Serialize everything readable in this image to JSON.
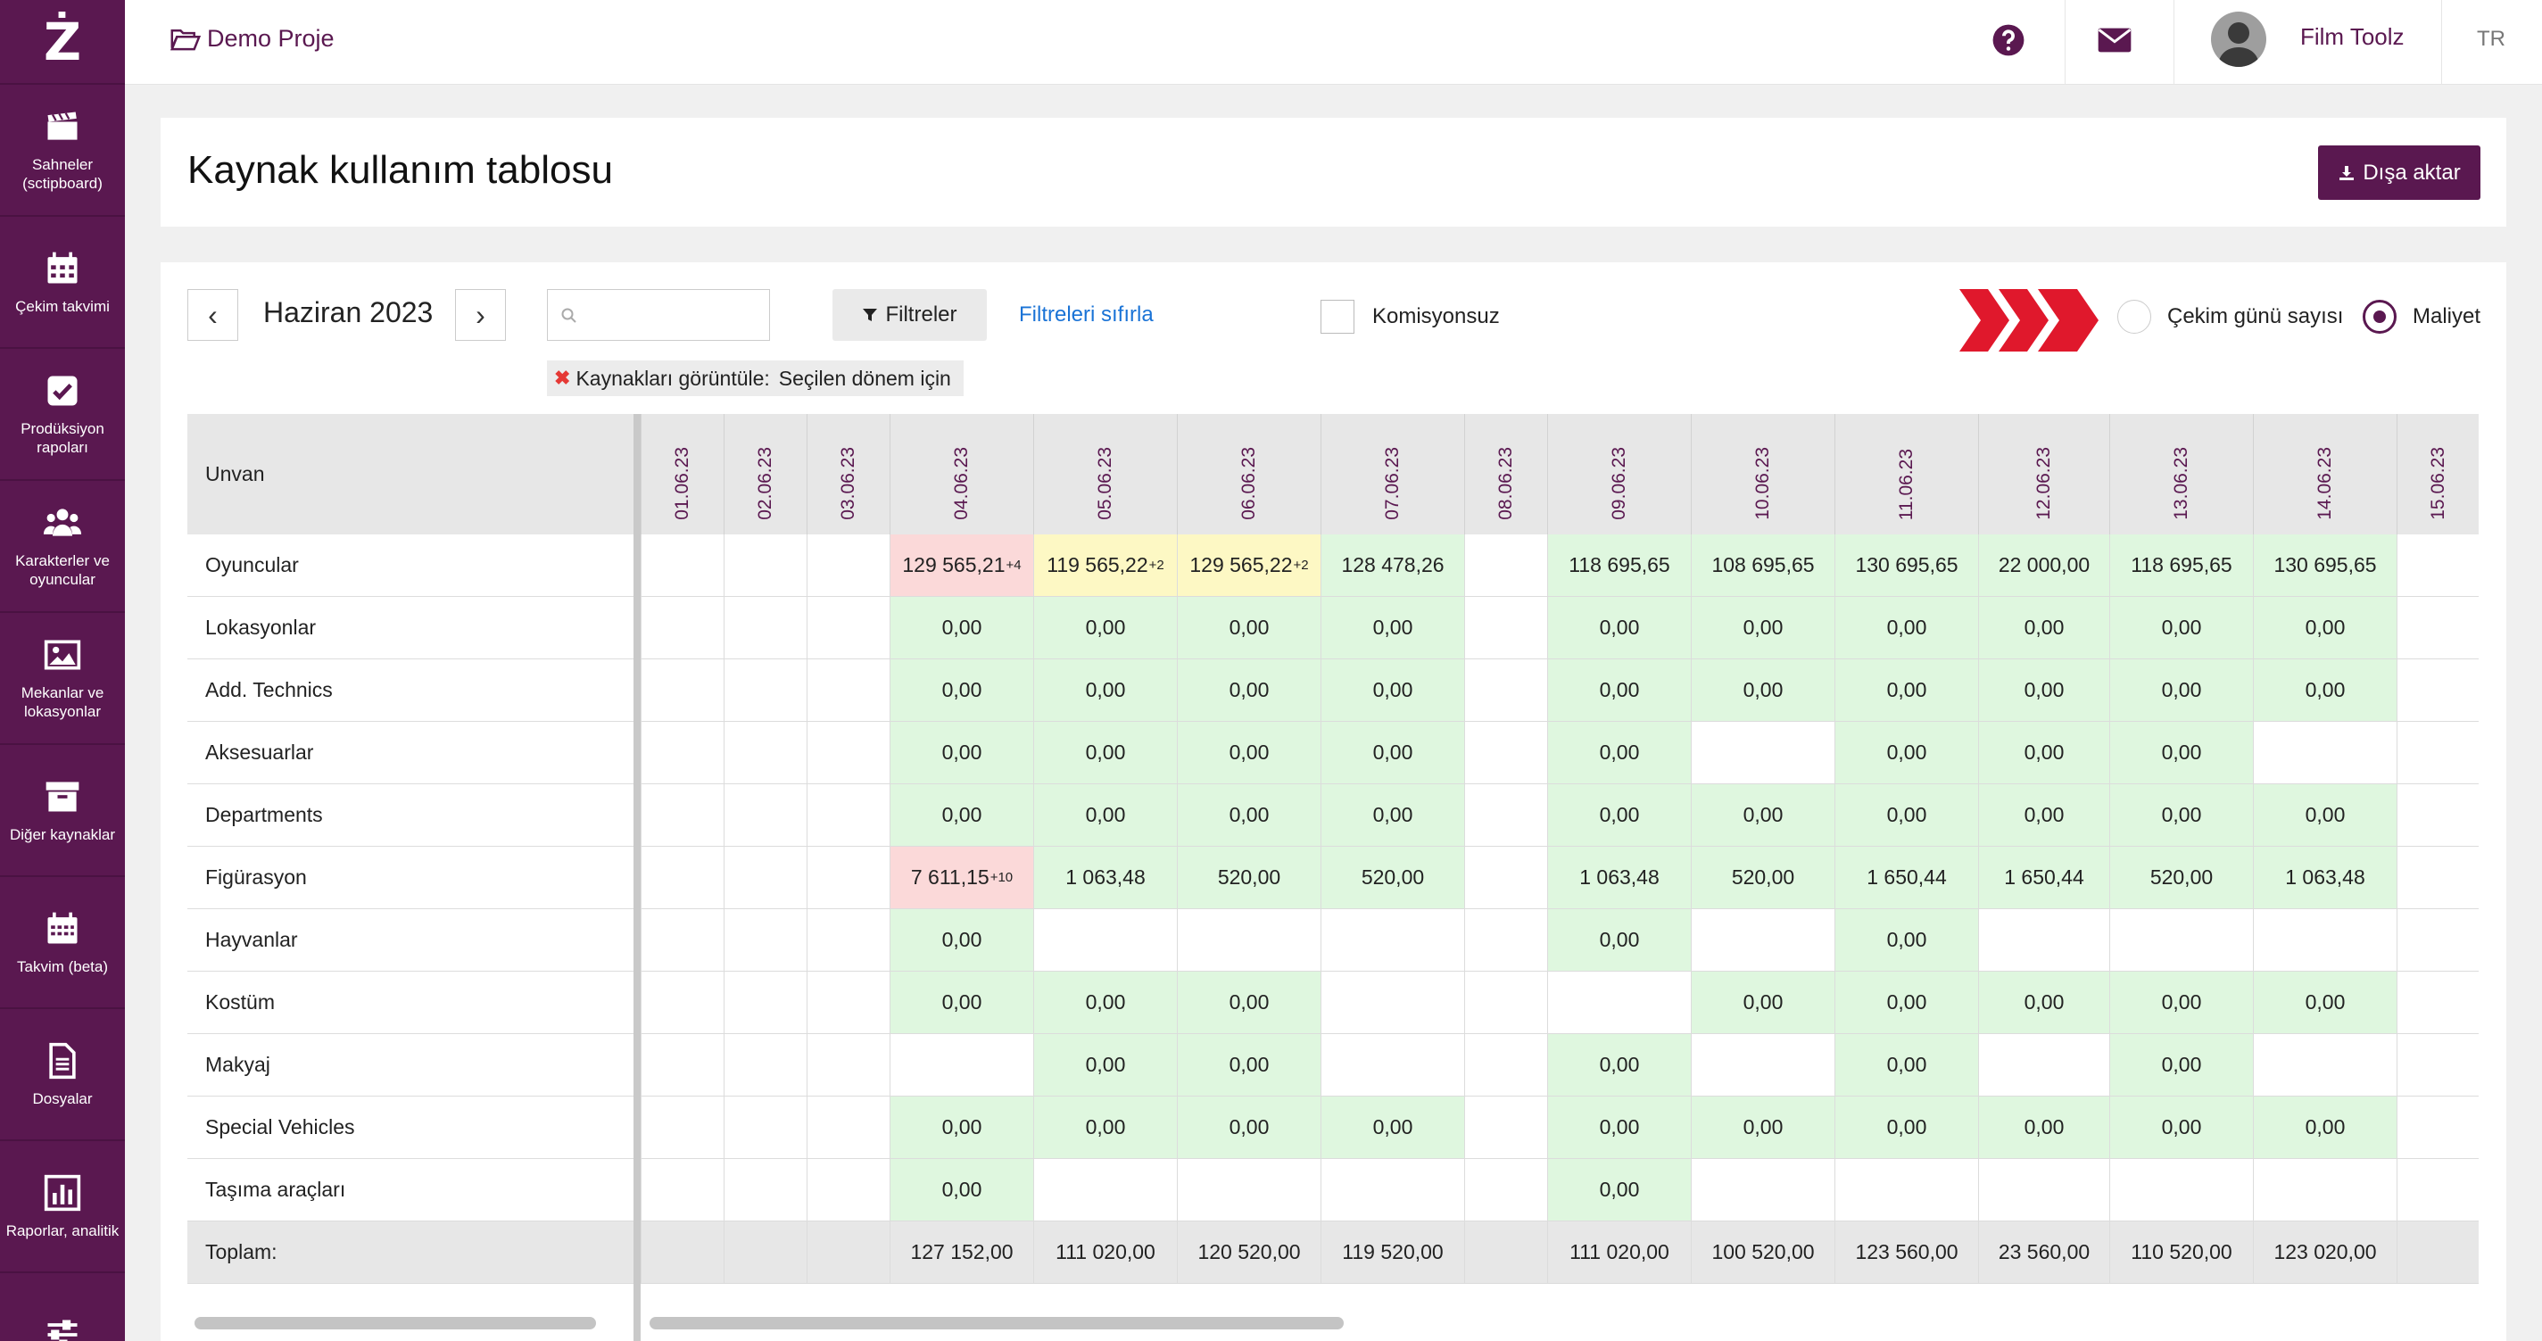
{
  "sidebar": {
    "logo": "Ż",
    "items": [
      {
        "label": "Sahneler (sctipboard)",
        "icon": "clapperboard-icon"
      },
      {
        "label": "Çekim takvimi",
        "icon": "calendar-icon"
      },
      {
        "label": "Prodüksiyon rapoları",
        "icon": "checkbox-icon"
      },
      {
        "label": "Karakterler ve oyuncular",
        "icon": "users-icon"
      },
      {
        "label": "Mekanlar ve lokasyonlar",
        "icon": "image-icon"
      },
      {
        "label": "Diğer kaynaklar",
        "icon": "archive-icon"
      },
      {
        "label": "Takvim (beta)",
        "icon": "calendar-grid-icon"
      },
      {
        "label": "Dosyalar",
        "icon": "file-icon"
      },
      {
        "label": "Raporlar, analitik",
        "icon": "bar-chart-icon"
      },
      {
        "label": "",
        "icon": "sliders-icon"
      }
    ]
  },
  "topbar": {
    "project": "Demo Proje",
    "user_name": "Film Toolz",
    "lang": "TR"
  },
  "header": {
    "title": "Kaynak kullanım tablosu",
    "export_label": "Dışa aktar"
  },
  "controls": {
    "prev": "‹",
    "next": "›",
    "month": "Haziran 2023",
    "search_value": "",
    "filter_label": "Filtreler",
    "reset_label": "Filtreleri sıfırla",
    "commission_label": "Komisyonsuz",
    "radio_days": "Çekim günü sayısı",
    "radio_cost": "Maliyet",
    "chip_label": "Kaynakları görüntüle:",
    "chip_value": "Seçilen dönem için"
  },
  "colors": {
    "brand": "#5a1850",
    "cell_green": "#dff7df",
    "cell_yellow": "#fdf8c4",
    "cell_red": "#fbd9d9",
    "arrow_red": "#e0182c"
  },
  "table": {
    "row_header": "Unvan",
    "dates": [
      "01.06.23",
      "02.06.23",
      "03.06.23",
      "04.06.23",
      "05.06.23",
      "06.06.23",
      "07.06.23",
      "08.06.23",
      "09.06.23",
      "10.06.23",
      "11.06.23",
      "12.06.23",
      "13.06.23",
      "14.06.23",
      "15.06.23"
    ],
    "rows": [
      {
        "name": "Oyuncular",
        "cells": [
          {
            "v": ""
          },
          {
            "v": ""
          },
          {
            "v": ""
          },
          {
            "v": "129 565,21",
            "sup": "+4",
            "c": "red"
          },
          {
            "v": "119 565,22",
            "sup": "+2",
            "c": "yellow"
          },
          {
            "v": "129 565,22",
            "sup": "+2",
            "c": "yellow"
          },
          {
            "v": "128 478,26",
            "c": "green"
          },
          {
            "v": ""
          },
          {
            "v": "118 695,65",
            "c": "green"
          },
          {
            "v": "108 695,65",
            "c": "green"
          },
          {
            "v": "130 695,65",
            "c": "green"
          },
          {
            "v": "22 000,00",
            "c": "green"
          },
          {
            "v": "118 695,65",
            "c": "green"
          },
          {
            "v": "130 695,65",
            "c": "green"
          },
          {
            "v": ""
          }
        ]
      },
      {
        "name": "Lokasyonlar",
        "cells": [
          {
            "v": ""
          },
          {
            "v": ""
          },
          {
            "v": ""
          },
          {
            "v": "0,00",
            "c": "green"
          },
          {
            "v": "0,00",
            "c": "green"
          },
          {
            "v": "0,00",
            "c": "green"
          },
          {
            "v": "0,00",
            "c": "green"
          },
          {
            "v": ""
          },
          {
            "v": "0,00",
            "c": "green"
          },
          {
            "v": "0,00",
            "c": "green"
          },
          {
            "v": "0,00",
            "c": "green"
          },
          {
            "v": "0,00",
            "c": "green"
          },
          {
            "v": "0,00",
            "c": "green"
          },
          {
            "v": "0,00",
            "c": "green"
          },
          {
            "v": ""
          }
        ]
      },
      {
        "name": "Add. Technics",
        "cells": [
          {
            "v": ""
          },
          {
            "v": ""
          },
          {
            "v": ""
          },
          {
            "v": "0,00",
            "c": "green"
          },
          {
            "v": "0,00",
            "c": "green"
          },
          {
            "v": "0,00",
            "c": "green"
          },
          {
            "v": "0,00",
            "c": "green"
          },
          {
            "v": ""
          },
          {
            "v": "0,00",
            "c": "green"
          },
          {
            "v": "0,00",
            "c": "green"
          },
          {
            "v": "0,00",
            "c": "green"
          },
          {
            "v": "0,00",
            "c": "green"
          },
          {
            "v": "0,00",
            "c": "green"
          },
          {
            "v": "0,00",
            "c": "green"
          },
          {
            "v": ""
          }
        ]
      },
      {
        "name": "Aksesuarlar",
        "cells": [
          {
            "v": ""
          },
          {
            "v": ""
          },
          {
            "v": ""
          },
          {
            "v": "0,00",
            "c": "green"
          },
          {
            "v": "0,00",
            "c": "green"
          },
          {
            "v": "0,00",
            "c": "green"
          },
          {
            "v": "0,00",
            "c": "green"
          },
          {
            "v": ""
          },
          {
            "v": "0,00",
            "c": "green"
          },
          {
            "v": ""
          },
          {
            "v": "0,00",
            "c": "green"
          },
          {
            "v": "0,00",
            "c": "green"
          },
          {
            "v": "0,00",
            "c": "green"
          },
          {
            "v": ""
          },
          {
            "v": ""
          }
        ]
      },
      {
        "name": "Departments",
        "cells": [
          {
            "v": ""
          },
          {
            "v": ""
          },
          {
            "v": ""
          },
          {
            "v": "0,00",
            "c": "green"
          },
          {
            "v": "0,00",
            "c": "green"
          },
          {
            "v": "0,00",
            "c": "green"
          },
          {
            "v": "0,00",
            "c": "green"
          },
          {
            "v": ""
          },
          {
            "v": "0,00",
            "c": "green"
          },
          {
            "v": "0,00",
            "c": "green"
          },
          {
            "v": "0,00",
            "c": "green"
          },
          {
            "v": "0,00",
            "c": "green"
          },
          {
            "v": "0,00",
            "c": "green"
          },
          {
            "v": "0,00",
            "c": "green"
          },
          {
            "v": ""
          }
        ]
      },
      {
        "name": "Figürasyon",
        "cells": [
          {
            "v": ""
          },
          {
            "v": ""
          },
          {
            "v": ""
          },
          {
            "v": "7 611,15",
            "sup": "+10",
            "c": "red"
          },
          {
            "v": "1 063,48",
            "c": "green"
          },
          {
            "v": "520,00",
            "c": "green"
          },
          {
            "v": "520,00",
            "c": "green"
          },
          {
            "v": ""
          },
          {
            "v": "1 063,48",
            "c": "green"
          },
          {
            "v": "520,00",
            "c": "green"
          },
          {
            "v": "1 650,44",
            "c": "green"
          },
          {
            "v": "1 650,44",
            "c": "green"
          },
          {
            "v": "520,00",
            "c": "green"
          },
          {
            "v": "1 063,48",
            "c": "green"
          },
          {
            "v": ""
          }
        ]
      },
      {
        "name": "Hayvanlar",
        "cells": [
          {
            "v": ""
          },
          {
            "v": ""
          },
          {
            "v": ""
          },
          {
            "v": "0,00",
            "c": "green"
          },
          {
            "v": ""
          },
          {
            "v": ""
          },
          {
            "v": ""
          },
          {
            "v": ""
          },
          {
            "v": "0,00",
            "c": "green"
          },
          {
            "v": ""
          },
          {
            "v": "0,00",
            "c": "green"
          },
          {
            "v": ""
          },
          {
            "v": ""
          },
          {
            "v": ""
          },
          {
            "v": ""
          }
        ]
      },
      {
        "name": "Kostüm",
        "cells": [
          {
            "v": ""
          },
          {
            "v": ""
          },
          {
            "v": ""
          },
          {
            "v": "0,00",
            "c": "green"
          },
          {
            "v": "0,00",
            "c": "green"
          },
          {
            "v": "0,00",
            "c": "green"
          },
          {
            "v": ""
          },
          {
            "v": ""
          },
          {
            "v": ""
          },
          {
            "v": "0,00",
            "c": "green"
          },
          {
            "v": "0,00",
            "c": "green"
          },
          {
            "v": "0,00",
            "c": "green"
          },
          {
            "v": "0,00",
            "c": "green"
          },
          {
            "v": "0,00",
            "c": "green"
          },
          {
            "v": ""
          }
        ]
      },
      {
        "name": "Makyaj",
        "cells": [
          {
            "v": ""
          },
          {
            "v": ""
          },
          {
            "v": ""
          },
          {
            "v": ""
          },
          {
            "v": "0,00",
            "c": "green"
          },
          {
            "v": "0,00",
            "c": "green"
          },
          {
            "v": ""
          },
          {
            "v": ""
          },
          {
            "v": "0,00",
            "c": "green"
          },
          {
            "v": ""
          },
          {
            "v": "0,00",
            "c": "green"
          },
          {
            "v": ""
          },
          {
            "v": "0,00",
            "c": "green"
          },
          {
            "v": ""
          },
          {
            "v": ""
          }
        ]
      },
      {
        "name": "Special Vehicles",
        "cells": [
          {
            "v": ""
          },
          {
            "v": ""
          },
          {
            "v": ""
          },
          {
            "v": "0,00",
            "c": "green"
          },
          {
            "v": "0,00",
            "c": "green"
          },
          {
            "v": "0,00",
            "c": "green"
          },
          {
            "v": "0,00",
            "c": "green"
          },
          {
            "v": ""
          },
          {
            "v": "0,00",
            "c": "green"
          },
          {
            "v": "0,00",
            "c": "green"
          },
          {
            "v": "0,00",
            "c": "green"
          },
          {
            "v": "0,00",
            "c": "green"
          },
          {
            "v": "0,00",
            "c": "green"
          },
          {
            "v": "0,00",
            "c": "green"
          },
          {
            "v": ""
          }
        ]
      },
      {
        "name": "Taşıma araçları",
        "cells": [
          {
            "v": ""
          },
          {
            "v": ""
          },
          {
            "v": ""
          },
          {
            "v": "0,00",
            "c": "green"
          },
          {
            "v": ""
          },
          {
            "v": ""
          },
          {
            "v": ""
          },
          {
            "v": ""
          },
          {
            "v": "0,00",
            "c": "green"
          },
          {
            "v": ""
          },
          {
            "v": ""
          },
          {
            "v": ""
          },
          {
            "v": ""
          },
          {
            "v": ""
          },
          {
            "v": ""
          }
        ]
      }
    ],
    "total_label": "Toplam:",
    "totals": [
      "",
      "",
      "",
      "127 152,00",
      "111 020,00",
      "120 520,00",
      "119 520,00",
      "",
      "111 020,00",
      "100 520,00",
      "123 560,00",
      "23 560,00",
      "110 520,00",
      "123 020,00",
      ""
    ]
  }
}
